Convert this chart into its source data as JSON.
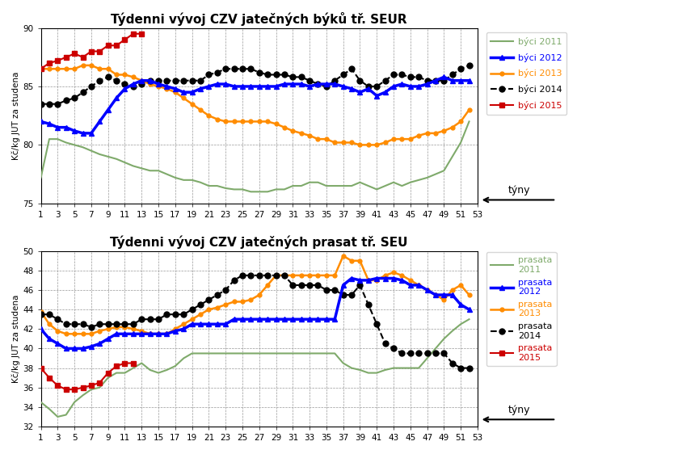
{
  "title1": "Týdenni vývoj CZV jatečných býků tř. SEUR",
  "title2": "Týdenni vývoj CZV jatečných prasat tř. SEU",
  "ylabel": "Kč/kg JUT za studena",
  "xlabel_label": "týny",
  "weeks": [
    1,
    2,
    3,
    4,
    5,
    6,
    7,
    8,
    9,
    10,
    11,
    12,
    13,
    14,
    15,
    16,
    17,
    18,
    19,
    20,
    21,
    22,
    23,
    24,
    25,
    26,
    27,
    28,
    29,
    30,
    31,
    32,
    33,
    34,
    35,
    36,
    37,
    38,
    39,
    40,
    41,
    42,
    43,
    44,
    45,
    46,
    47,
    48,
    49,
    50,
    51,
    52,
    53
  ],
  "byci_2011": [
    77.2,
    80.5,
    80.5,
    80.2,
    80.0,
    79.8,
    79.5,
    79.2,
    79.0,
    78.8,
    78.5,
    78.2,
    78.0,
    77.8,
    77.8,
    77.5,
    77.2,
    77.0,
    77.0,
    76.8,
    76.5,
    76.5,
    76.3,
    76.2,
    76.2,
    76.0,
    76.0,
    76.0,
    76.2,
    76.2,
    76.5,
    76.5,
    76.8,
    76.8,
    76.5,
    76.5,
    76.5,
    76.5,
    76.8,
    76.5,
    76.2,
    76.5,
    76.8,
    76.5,
    76.8,
    77.0,
    77.2,
    77.5,
    77.8,
    79.0,
    80.2,
    82.0,
    null
  ],
  "byci_2012": [
    82.0,
    81.8,
    81.5,
    81.5,
    81.2,
    81.0,
    81.0,
    82.0,
    83.0,
    84.0,
    84.8,
    85.2,
    85.5,
    85.5,
    85.2,
    85.0,
    84.8,
    84.5,
    84.5,
    84.8,
    85.0,
    85.2,
    85.2,
    85.0,
    85.0,
    85.0,
    85.0,
    85.0,
    85.0,
    85.2,
    85.2,
    85.2,
    85.0,
    85.2,
    85.2,
    85.2,
    85.0,
    84.8,
    84.5,
    84.8,
    84.2,
    84.5,
    85.0,
    85.2,
    85.0,
    85.0,
    85.2,
    85.5,
    85.8,
    85.5,
    85.5,
    85.5,
    null
  ],
  "byci_2013": [
    86.5,
    86.5,
    86.5,
    86.5,
    86.5,
    86.8,
    86.8,
    86.5,
    86.5,
    86.0,
    86.0,
    85.8,
    85.5,
    85.2,
    85.0,
    84.8,
    84.5,
    84.0,
    83.5,
    83.0,
    82.5,
    82.2,
    82.0,
    82.0,
    82.0,
    82.0,
    82.0,
    82.0,
    81.8,
    81.5,
    81.2,
    81.0,
    80.8,
    80.5,
    80.5,
    80.2,
    80.2,
    80.2,
    80.0,
    80.0,
    80.0,
    80.2,
    80.5,
    80.5,
    80.5,
    80.8,
    81.0,
    81.0,
    81.2,
    81.5,
    82.0,
    83.0,
    null
  ],
  "byci_2014": [
    83.5,
    83.5,
    83.5,
    83.8,
    84.0,
    84.5,
    85.0,
    85.5,
    85.8,
    85.5,
    85.2,
    85.0,
    85.2,
    85.5,
    85.5,
    85.5,
    85.5,
    85.5,
    85.5,
    85.5,
    86.0,
    86.2,
    86.5,
    86.5,
    86.5,
    86.5,
    86.2,
    86.0,
    86.0,
    86.0,
    85.8,
    85.8,
    85.5,
    85.2,
    85.0,
    85.5,
    86.0,
    86.5,
    85.5,
    85.0,
    85.0,
    85.5,
    86.0,
    86.0,
    85.8,
    85.8,
    85.5,
    85.5,
    85.5,
    86.0,
    86.5,
    86.8,
    null
  ],
  "byci_2015": [
    86.5,
    87.0,
    87.2,
    87.5,
    87.8,
    87.5,
    88.0,
    88.0,
    88.5,
    88.5,
    89.0,
    89.5,
    89.5,
    null,
    null,
    null,
    null,
    null,
    null,
    null,
    null,
    null,
    null,
    null,
    null,
    null,
    null,
    null,
    null,
    null,
    null,
    null,
    null,
    null,
    null,
    null,
    null,
    null,
    null,
    null,
    null,
    null,
    null,
    null,
    null,
    null,
    null,
    null,
    null,
    null,
    null,
    null,
    null
  ],
  "prasata_2011": [
    34.5,
    33.8,
    33.0,
    33.2,
    34.5,
    35.2,
    35.8,
    36.0,
    37.0,
    37.5,
    37.5,
    38.0,
    38.5,
    37.8,
    37.5,
    37.8,
    38.2,
    39.0,
    39.5,
    39.5,
    39.5,
    39.5,
    39.5,
    39.5,
    39.5,
    39.5,
    39.5,
    39.5,
    39.5,
    39.5,
    39.5,
    39.5,
    39.5,
    39.5,
    39.5,
    39.5,
    38.5,
    38.0,
    37.8,
    37.5,
    37.5,
    37.8,
    38.0,
    38.0,
    38.0,
    38.0,
    39.0,
    40.0,
    41.0,
    41.8,
    42.5,
    43.0,
    null
  ],
  "prasata_2012": [
    42.0,
    41.0,
    40.5,
    40.0,
    40.0,
    40.0,
    40.2,
    40.5,
    41.0,
    41.5,
    41.5,
    41.5,
    41.5,
    41.5,
    41.5,
    41.5,
    41.8,
    42.0,
    42.5,
    42.5,
    42.5,
    42.5,
    42.5,
    43.0,
    43.0,
    43.0,
    43.0,
    43.0,
    43.0,
    43.0,
    43.0,
    43.0,
    43.0,
    43.0,
    43.0,
    43.0,
    46.5,
    47.2,
    47.0,
    47.0,
    47.2,
    47.2,
    47.2,
    47.0,
    46.5,
    46.5,
    46.0,
    45.5,
    45.5,
    45.5,
    44.5,
    44.0,
    null
  ],
  "prasata_2013": [
    43.8,
    42.5,
    41.8,
    41.5,
    41.5,
    41.5,
    41.5,
    41.8,
    42.0,
    42.2,
    42.2,
    42.0,
    41.8,
    41.5,
    41.5,
    41.5,
    42.0,
    42.5,
    43.0,
    43.5,
    44.0,
    44.2,
    44.5,
    44.8,
    44.8,
    45.0,
    45.5,
    46.5,
    47.5,
    47.5,
    47.5,
    47.5,
    47.5,
    47.5,
    47.5,
    47.5,
    49.5,
    49.0,
    49.0,
    47.0,
    47.0,
    47.5,
    47.8,
    47.5,
    47.0,
    46.5,
    46.0,
    45.5,
    45.0,
    46.0,
    46.5,
    45.5,
    null
  ],
  "prasata_2014": [
    43.5,
    43.5,
    43.0,
    42.5,
    42.5,
    42.5,
    42.2,
    42.5,
    42.5,
    42.5,
    42.5,
    42.5,
    43.0,
    43.0,
    43.0,
    43.5,
    43.5,
    43.5,
    44.0,
    44.5,
    45.0,
    45.5,
    46.0,
    47.0,
    47.5,
    47.5,
    47.5,
    47.5,
    47.5,
    47.5,
    46.5,
    46.5,
    46.5,
    46.5,
    46.0,
    46.0,
    45.5,
    45.5,
    46.5,
    44.5,
    42.5,
    40.5,
    40.0,
    39.5,
    39.5,
    39.5,
    39.5,
    39.5,
    39.5,
    38.5,
    38.0,
    38.0,
    null
  ],
  "prasata_2015": [
    38.0,
    37.0,
    36.2,
    35.8,
    35.8,
    36.0,
    36.2,
    36.5,
    37.5,
    38.2,
    38.5,
    38.5,
    null,
    null,
    null,
    null,
    null,
    null,
    null,
    null,
    null,
    null,
    null,
    null,
    null,
    null,
    null,
    null,
    null,
    null,
    null,
    null,
    null,
    null,
    null,
    null,
    null,
    null,
    null,
    null,
    null,
    null,
    null,
    null,
    null,
    null,
    null,
    null,
    null,
    null,
    null,
    null,
    null
  ],
  "color_2011": "#7faa6b",
  "color_2012": "#0000ff",
  "color_2013": "#ff8c00",
  "color_2014": "#000000",
  "color_2015": "#cc0000",
  "ylim1": [
    75,
    90
  ],
  "ylim2": [
    32,
    50
  ],
  "yticks1": [
    75,
    80,
    85,
    90
  ],
  "yticks2": [
    32,
    34,
    36,
    38,
    40,
    42,
    44,
    46,
    48,
    50
  ],
  "xticks": [
    1,
    3,
    5,
    7,
    9,
    11,
    13,
    15,
    17,
    19,
    21,
    23,
    25,
    27,
    29,
    31,
    33,
    35,
    37,
    39,
    41,
    43,
    45,
    47,
    49,
    51,
    53
  ],
  "bg_color": "#ffffff",
  "grid_color": "#999999",
  "plot_bg": "#ffffff"
}
